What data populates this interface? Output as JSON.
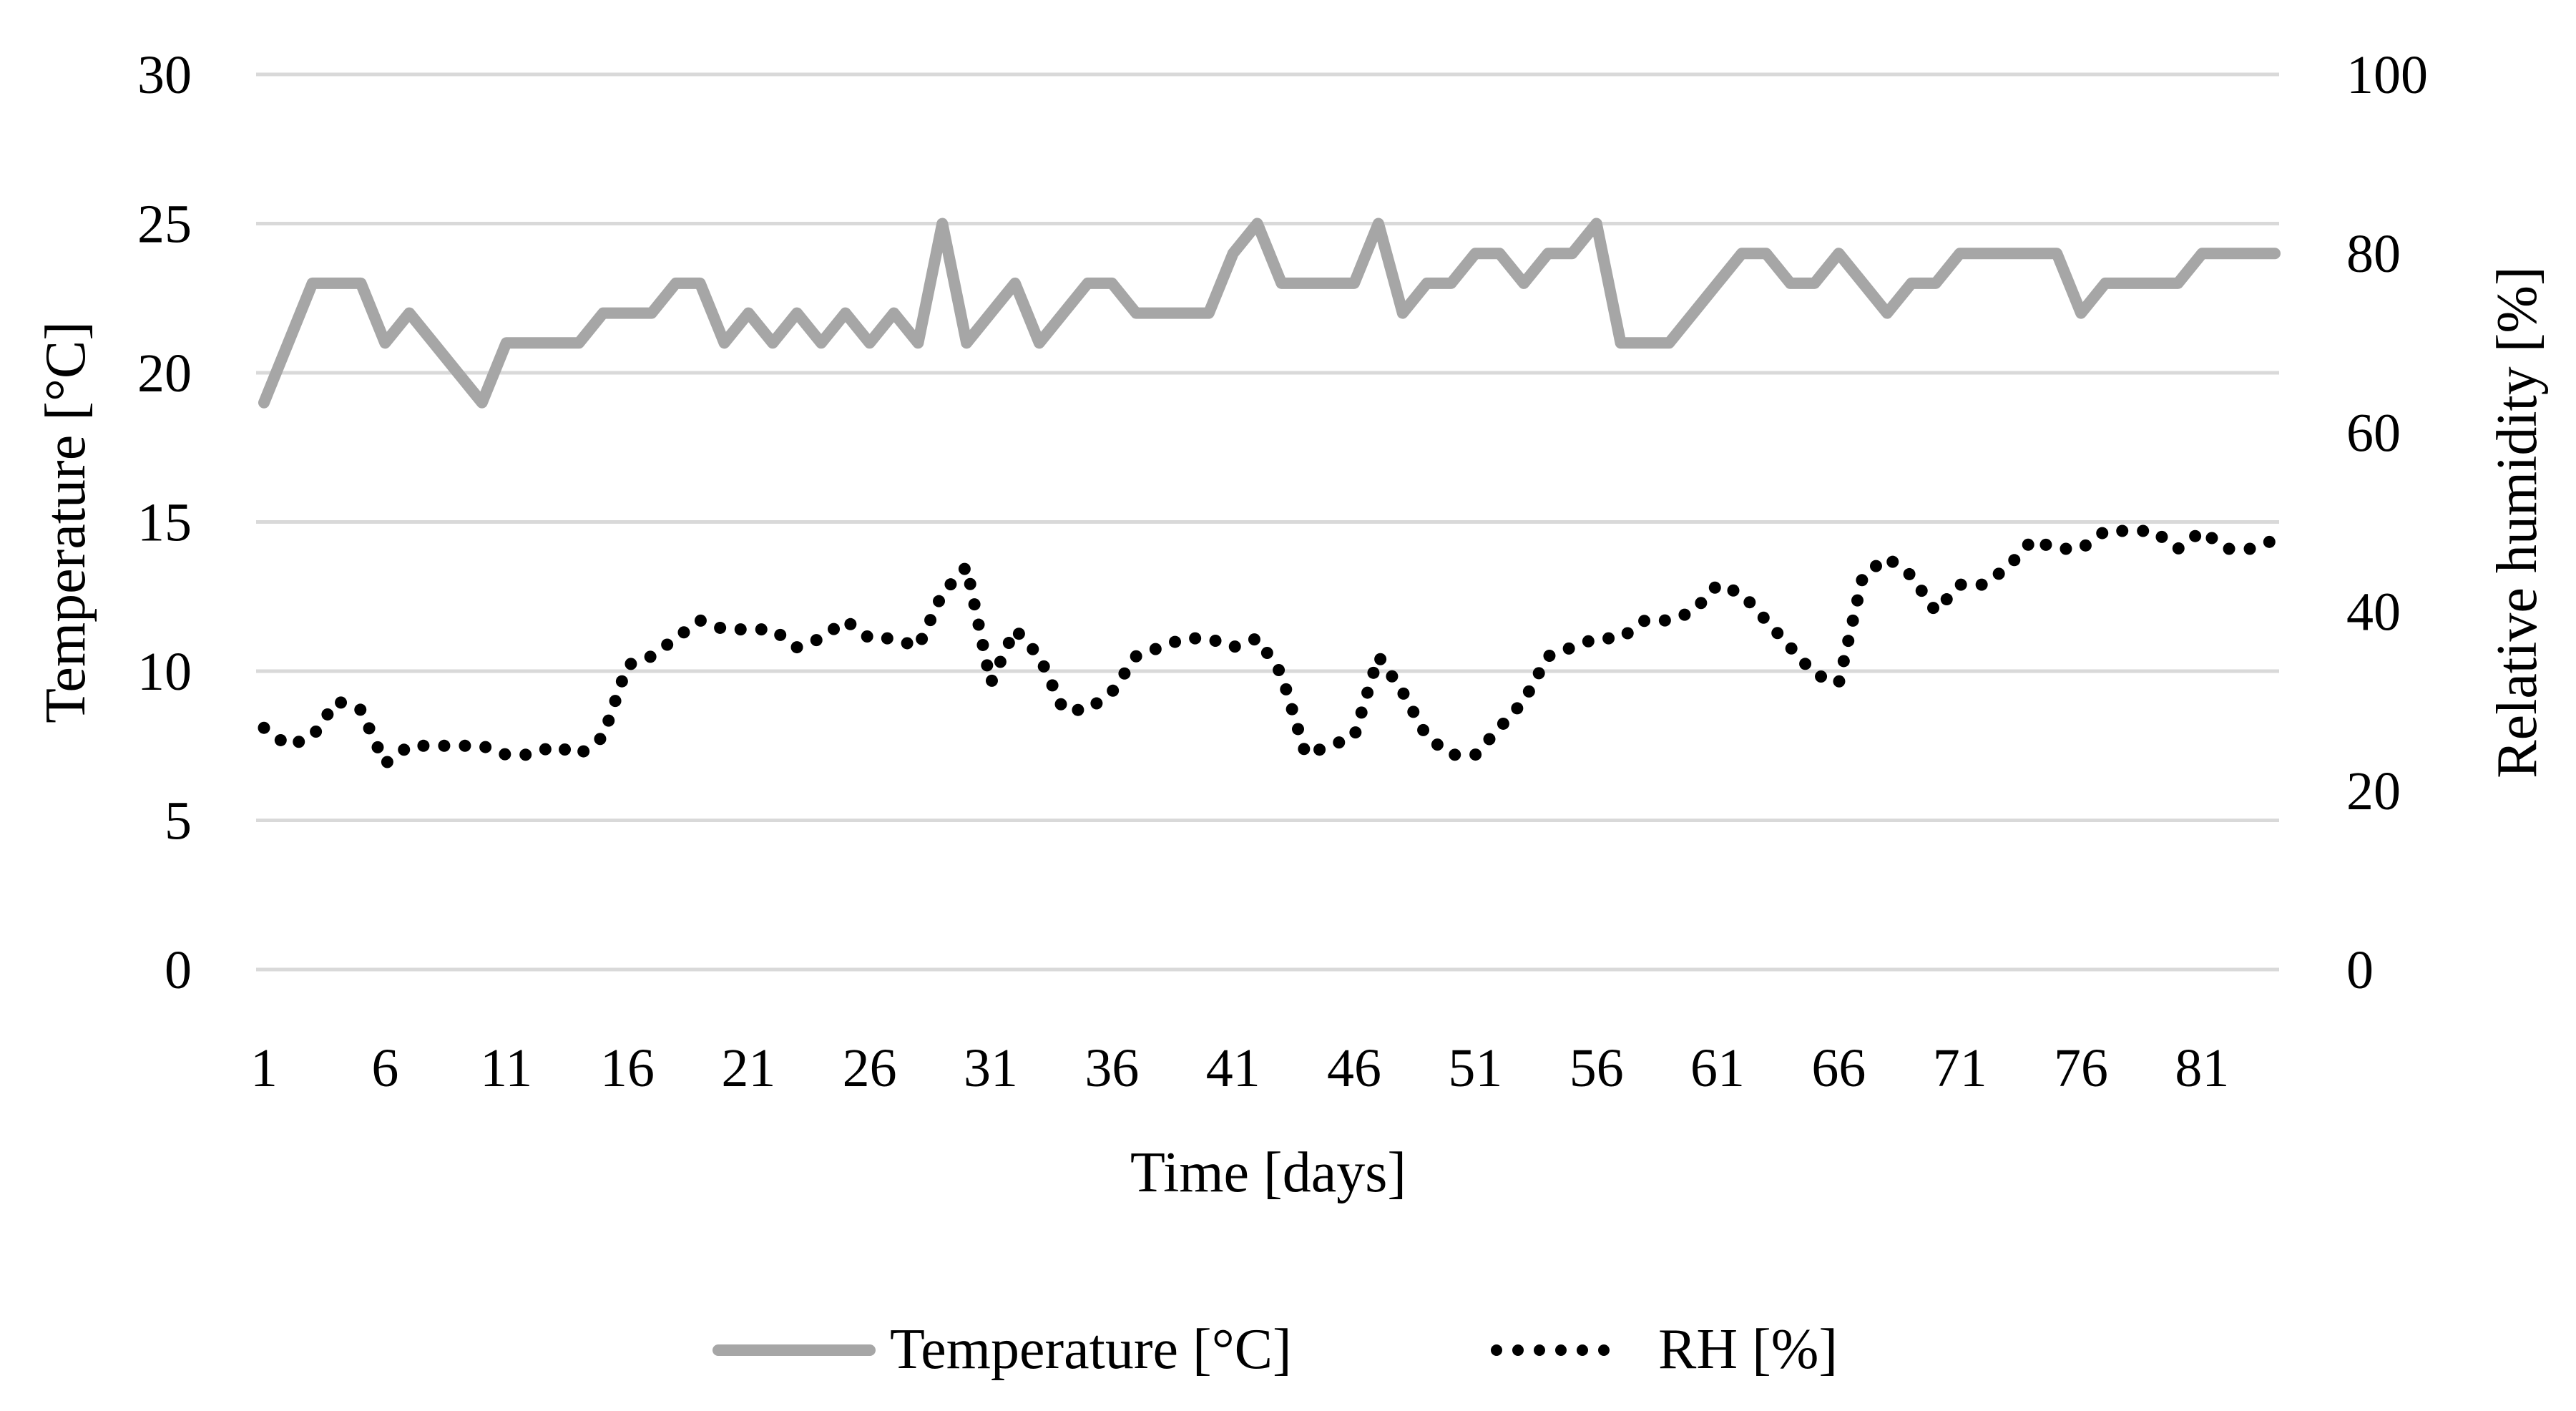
{
  "chart_data": {
    "type": "line",
    "title": "",
    "xlabel": "Time [days]",
    "ylabel_left": "Temperature [°C]",
    "ylabel_right": "Relative humidity [%]",
    "ylim_left": [
      0,
      30
    ],
    "ylim_right": [
      0,
      100
    ],
    "xlim": [
      1,
      84
    ],
    "yticks_left": [
      "0",
      "5",
      "10",
      "15",
      "20",
      "25",
      "30"
    ],
    "yticks_right": [
      "0",
      "20",
      "40",
      "60",
      "80",
      "100"
    ],
    "xticks": [
      "1",
      "6",
      "11",
      "16",
      "21",
      "26",
      "31",
      "36",
      "41",
      "46",
      "51",
      "56",
      "61",
      "66",
      "71",
      "76",
      "81"
    ],
    "grid": true,
    "legend_position": "bottom",
    "x": [
      1,
      2,
      3,
      4,
      5,
      6,
      7,
      8,
      9,
      10,
      11,
      12,
      13,
      14,
      15,
      16,
      17,
      18,
      19,
      20,
      21,
      22,
      23,
      24,
      25,
      26,
      27,
      28,
      29,
      30,
      31,
      32,
      33,
      34,
      35,
      36,
      37,
      38,
      39,
      40,
      41,
      42,
      43,
      44,
      45,
      46,
      47,
      48,
      49,
      50,
      51,
      52,
      53,
      54,
      55,
      56,
      57,
      58,
      59,
      60,
      61,
      62,
      63,
      64,
      65,
      66,
      67,
      68,
      69,
      70,
      71,
      72,
      73,
      74,
      75,
      76,
      77,
      78,
      79,
      80,
      81,
      82,
      83,
      84
    ],
    "series": [
      {
        "name": "Temperature [°C]",
        "axis": "left",
        "style": "solid",
        "color": "#a6a6a6",
        "values": [
          19,
          21,
          23,
          23,
          23,
          21,
          22,
          21,
          20,
          19,
          21,
          21,
          21,
          21,
          22,
          22,
          22,
          23,
          23,
          21,
          22,
          21,
          22,
          21,
          22,
          21,
          22,
          21,
          25,
          21,
          22,
          23,
          21,
          22,
          23,
          23,
          22,
          22,
          22,
          22,
          24,
          25,
          23,
          23,
          23,
          23,
          25,
          22,
          23,
          23,
          24,
          24,
          23,
          24,
          24,
          25,
          21,
          21,
          21,
          22,
          23,
          24,
          24,
          23,
          23,
          24,
          23,
          22,
          23,
          23,
          24,
          24,
          24,
          24,
          24,
          22,
          23,
          23,
          23,
          23,
          24,
          24,
          24,
          24
        ]
      },
      {
        "name": "RH [%]",
        "axis": "right",
        "style": "dotted",
        "color": "#000000",
        "values": [
          27,
          25,
          26,
          30,
          29,
          23,
          25,
          25,
          25,
          25,
          24,
          24,
          25,
          24,
          26,
          34,
          35,
          37,
          39,
          38,
          38,
          38,
          36,
          37,
          39,
          37,
          37,
          36,
          42,
          45,
          32,
          38,
          35,
          29,
          29,
          31,
          35,
          36,
          37,
          37,
          36,
          37,
          33,
          24,
          25,
          26,
          35,
          31,
          26,
          24,
          24,
          27,
          30,
          35,
          36,
          37,
          37,
          39,
          39,
          40,
          43,
          42,
          39,
          36,
          33,
          32,
          44,
          46,
          44,
          40,
          43,
          43,
          45,
          48,
          47,
          47,
          49,
          49,
          49,
          47,
          49,
          47,
          47,
          48
        ]
      }
    ]
  }
}
